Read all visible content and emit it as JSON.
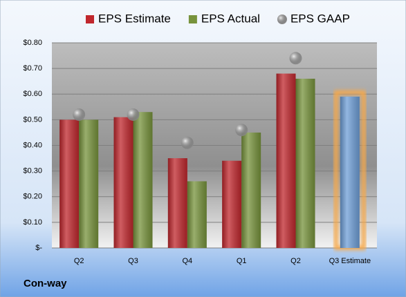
{
  "chart_data": {
    "type": "bar",
    "company": "Con-way",
    "categories": [
      "Q2",
      "Q3",
      "Q4",
      "Q1",
      "Q2",
      "Q3 Estimate"
    ],
    "series": [
      {
        "name": "EPS Estimate",
        "color": "#c0272d",
        "kind": "bar",
        "values": [
          0.5,
          0.51,
          0.35,
          0.34,
          0.68,
          null
        ]
      },
      {
        "name": "EPS Actual",
        "color": "#77933c",
        "kind": "bar",
        "values": [
          0.5,
          0.53,
          0.26,
          0.45,
          0.66,
          null
        ]
      },
      {
        "name": "EPS GAAP",
        "color": "#a6a6a6",
        "kind": "marker",
        "values": [
          0.52,
          0.52,
          0.41,
          0.46,
          0.74,
          null
        ]
      },
      {
        "color": "#6f9fd8",
        "kind": "bar",
        "highlight": "#f7a84a",
        "values": [
          null,
          null,
          null,
          null,
          null,
          0.59
        ]
      }
    ],
    "ylim": [
      0,
      0.8
    ],
    "yticks": [
      {
        "value": 0,
        "label": "$-"
      },
      {
        "value": 0.1,
        "label": "$0.10"
      },
      {
        "value": 0.2,
        "label": "$0.20"
      },
      {
        "value": 0.3,
        "label": "$0.30"
      },
      {
        "value": 0.4,
        "label": "$0.40"
      },
      {
        "value": 0.5,
        "label": "$0.50"
      },
      {
        "value": 0.6,
        "label": "$0.60"
      },
      {
        "value": 0.7,
        "label": "$0.70"
      },
      {
        "value": 0.8,
        "label": "$0.80"
      }
    ],
    "grid": true,
    "legend": "top"
  }
}
